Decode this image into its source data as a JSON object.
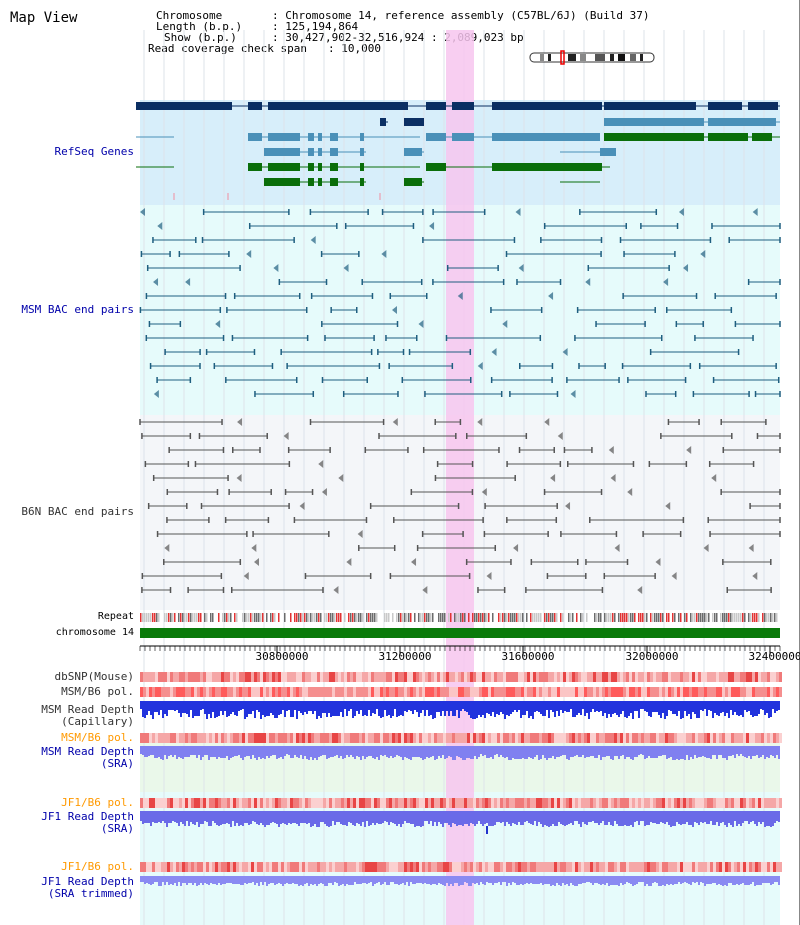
{
  "title": "Map View",
  "info": {
    "chromosome_label": "Chromosome",
    "chromosome_value": "Chromosome 14, reference assembly (C57BL/6J) (Build 37)",
    "length_label": "Length (b.p.)",
    "length_value": "125,194,864",
    "show_label": "Show (b.p.)",
    "show_value": "30,427,902-32,516,924 : 2,089,023 bp",
    "span_label": "Read coverage check span",
    "span_value": "10,000"
  },
  "tracks": {
    "refseq": "RefSeq Genes",
    "msm_bac": "MSM BAC end pairs",
    "b6n_bac": "B6N BAC end pairs",
    "repeat": "Repeat",
    "chromosome": "chromosome 14",
    "dbsnp": "dbSNP(Mouse)",
    "msm_b6_pol": "MSM/B6 pol.",
    "msm_depth_cap_1": "MSM Read Depth",
    "msm_depth_cap_2": "(Capillary)",
    "msm_b6_pol2": "MSM/B6 pol.",
    "msm_depth_sra_1": "MSM Read Depth",
    "msm_depth_sra_2": "(SRA)",
    "jf1_b6_pol": "JF1/B6 pol.",
    "jf1_depth_sra_1": "JF1 Read Depth",
    "jf1_depth_sra_2": "(SRA)",
    "jf1_b6_pol2": "JF1/B6 pol.",
    "jf1_depth_trim_1": "JF1 Read Depth",
    "jf1_depth_trim_2": "(SRA trimmed)"
  },
  "axis": {
    "ticks": [
      "30800000",
      "31200000",
      "31600000",
      "32000000",
      "32400000"
    ]
  },
  "colors": {
    "label_blue": "#0000aa",
    "label_orange": "#ff9900",
    "refseq_dark": "#0b2f63",
    "refseq_light": "#4a90b8",
    "refseq_green": "#0a6e0a",
    "msm_line": "#1f5f80",
    "b6n_line": "#555555",
    "highlight": "#f7c6ee",
    "chrom_green": "#0a7a0a"
  }
}
